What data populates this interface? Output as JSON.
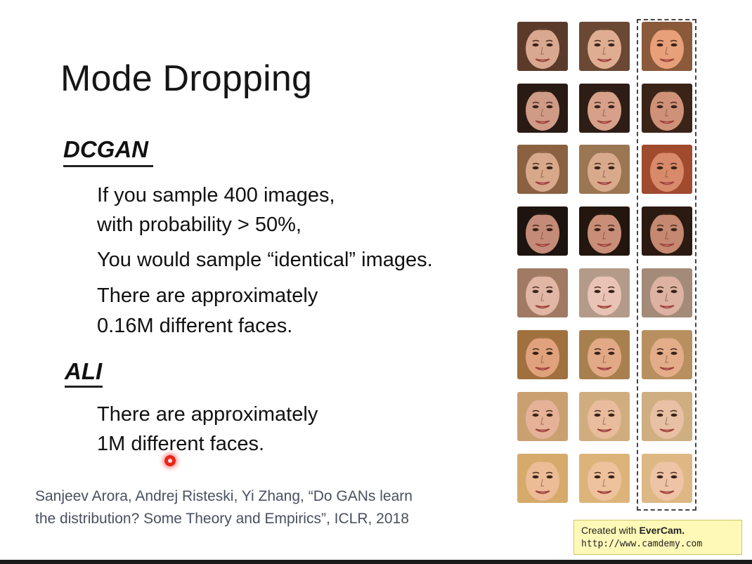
{
  "slide": {
    "title": "Mode Dropping",
    "dcgan": {
      "heading": "DCGAN",
      "lines": [
        "If you sample 400 images,",
        "with probability > 50%,",
        "You would sample “identical” images.",
        "There are approximately",
        "0.16M different faces."
      ]
    },
    "ali": {
      "heading": "ALI",
      "lines": [
        "There are approximately",
        "1M different faces."
      ]
    },
    "citation": {
      "line1": "Sanjeev Arora, Andrej Risteski, Yi Zhang, “Do GANs learn",
      "line2": "the distribution? Some Theory and Empirics”, ICLR, 2018"
    }
  },
  "faces": {
    "rows": 8,
    "cols": 3,
    "skin": [
      [
        "#d9a890",
        "#dfae92",
        "#e7a07a"
      ],
      [
        "#cf9b86",
        "#d7a08a",
        "#cf9278"
      ],
      [
        "#d8a88a",
        "#d9a98c",
        "#d88a6a"
      ],
      [
        "#c48c78",
        "#c98e78",
        "#c58870"
      ],
      [
        "#e2b6a4",
        "#e9c3b6",
        "#ddb2a2"
      ],
      [
        "#e0a27c",
        "#e2a987",
        "#e4ad8a"
      ],
      [
        "#e5b298",
        "#e8bc9c",
        "#e8c0a4"
      ],
      [
        "#ecbc96",
        "#efc29e",
        "#eec4a6"
      ]
    ],
    "hair": [
      [
        "#5c3a2a",
        "#6a4834",
        "#8a5a3a"
      ],
      [
        "#2a1a14",
        "#2e1d16",
        "#3a2418"
      ],
      [
        "#8a6242",
        "#9a7652",
        "#a04a2e"
      ],
      [
        "#1e140f",
        "#22160f",
        "#2a1a12"
      ],
      [
        "#a07a62",
        "#b49a88",
        "#a48a78"
      ],
      [
        "#a0703e",
        "#a8804e",
        "#b89060"
      ],
      [
        "#caa070",
        "#d0ad7e",
        "#cfae82"
      ],
      [
        "#d6aa6a",
        "#dcb47a",
        "#deb884"
      ]
    ]
  },
  "watermark": {
    "prefix": "Created with ",
    "brand": "EverCam.",
    "url": "http://www.camdemy.com"
  }
}
